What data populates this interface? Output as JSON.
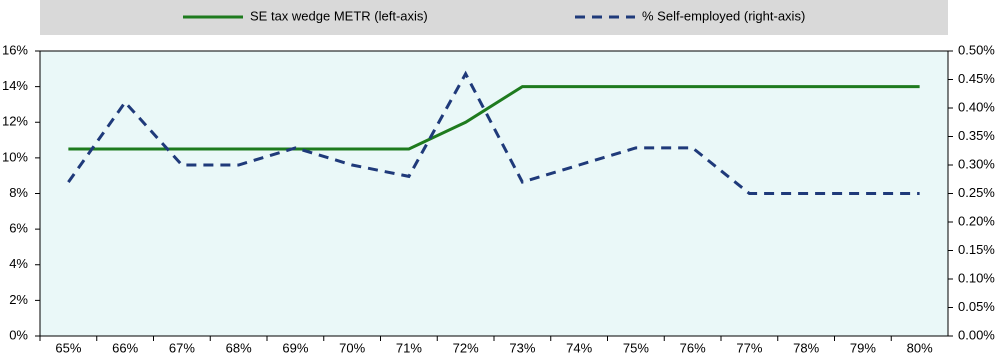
{
  "chart_data": {
    "type": "line",
    "categories": [
      "65%",
      "66%",
      "67%",
      "68%",
      "69%",
      "70%",
      "71%",
      "72%",
      "73%",
      "74%",
      "75%",
      "76%",
      "77%",
      "78%",
      "79%",
      "80%"
    ],
    "series": [
      {
        "name": "SE tax wedge METR (left-axis)",
        "color": "#1e7b1e",
        "dash": false,
        "axis": "y",
        "values": [
          10.5,
          10.5,
          10.5,
          10.5,
          10.5,
          10.5,
          10.5,
          12,
          14,
          14,
          14,
          14,
          14,
          14,
          14,
          14
        ]
      },
      {
        "name": "% Self-employed (right-axis)",
        "color": "#1f3a7a",
        "dash": true,
        "axis": "y2",
        "values": [
          0.27,
          0.41,
          0.3,
          0.3,
          0.33,
          0.3,
          0.28,
          0.46,
          0.27,
          0.3,
          0.33,
          0.33,
          0.25,
          0.25,
          0.25,
          0.25
        ]
      }
    ],
    "ylim": [
      0,
      16
    ],
    "yticks": [
      {
        "value": 0,
        "label": "0%"
      },
      {
        "value": 2,
        "label": "2%"
      },
      {
        "value": 4,
        "label": "4%"
      },
      {
        "value": 6,
        "label": "6%"
      },
      {
        "value": 8,
        "label": "8%"
      },
      {
        "value": 10,
        "label": "10%"
      },
      {
        "value": 12,
        "label": "12%"
      },
      {
        "value": 14,
        "label": "14%"
      },
      {
        "value": 16,
        "label": "16%"
      }
    ],
    "y2lim": [
      0,
      0.5
    ],
    "y2ticks": [
      {
        "value": 0,
        "label": "0.00%"
      },
      {
        "value": 0.05,
        "label": "0.05%"
      },
      {
        "value": 0.1,
        "label": "0.10%"
      },
      {
        "value": 0.15,
        "label": "0.15%"
      },
      {
        "value": 0.2,
        "label": "0.20%"
      },
      {
        "value": 0.25,
        "label": "0.25%"
      },
      {
        "value": 0.3,
        "label": "0.30%"
      },
      {
        "value": 0.35,
        "label": "0.35%"
      },
      {
        "value": 0.4,
        "label": "0.40%"
      },
      {
        "value": 0.45,
        "label": "0.45%"
      },
      {
        "value": 0.5,
        "label": "0.50%"
      }
    ],
    "legend": "top",
    "grid": false
  }
}
